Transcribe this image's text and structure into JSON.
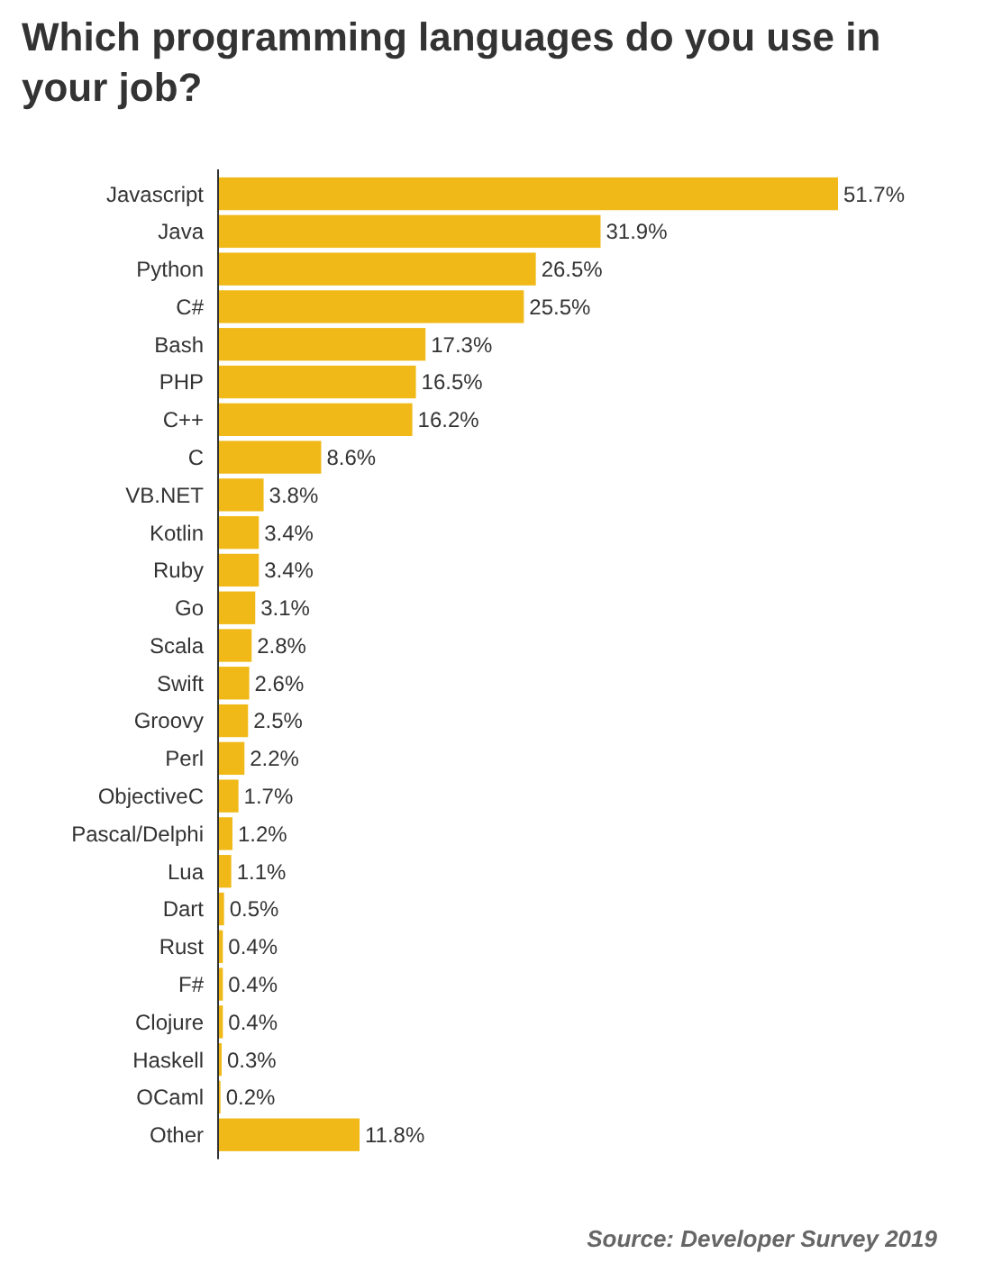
{
  "chart_data": {
    "type": "bar",
    "orientation": "horizontal",
    "title": "Which programming languages do you use in your job?",
    "categories": [
      "Javascript",
      "Java",
      "Python",
      "C#",
      "Bash",
      "PHP",
      "C++",
      "C",
      "VB.NET",
      "Kotlin",
      "Ruby",
      "Go",
      "Scala",
      "Swift",
      "Groovy",
      "Perl",
      "ObjectiveC",
      "Pascal/Delphi",
      "Lua",
      "Dart",
      "Rust",
      "F#",
      "Clojure",
      "Haskell",
      "OCaml",
      "Other"
    ],
    "values": [
      51.7,
      31.9,
      26.5,
      25.5,
      17.3,
      16.5,
      16.2,
      8.6,
      3.8,
      3.4,
      3.4,
      3.1,
      2.8,
      2.6,
      2.5,
      2.2,
      1.7,
      1.2,
      1.1,
      0.5,
      0.4,
      0.4,
      0.4,
      0.3,
      0.2,
      11.8
    ],
    "value_labels": [
      "51.7%",
      "31.9%",
      "26.5%",
      "25.5%",
      "17.3%",
      "16.5%",
      "16.2%",
      "8.6%",
      "3.8%",
      "3.4%",
      "3.4%",
      "3.1%",
      "2.8%",
      "2.6%",
      "2.5%",
      "2.2%",
      "1.7%",
      "1.2%",
      "1.1%",
      "0.5%",
      "0.4%",
      "0.4%",
      "0.4%",
      "0.3%",
      "0.2%",
      "11.8%"
    ],
    "color": "#f0b917",
    "annotations": [
      "Source: Developer Survey 2019"
    ]
  }
}
